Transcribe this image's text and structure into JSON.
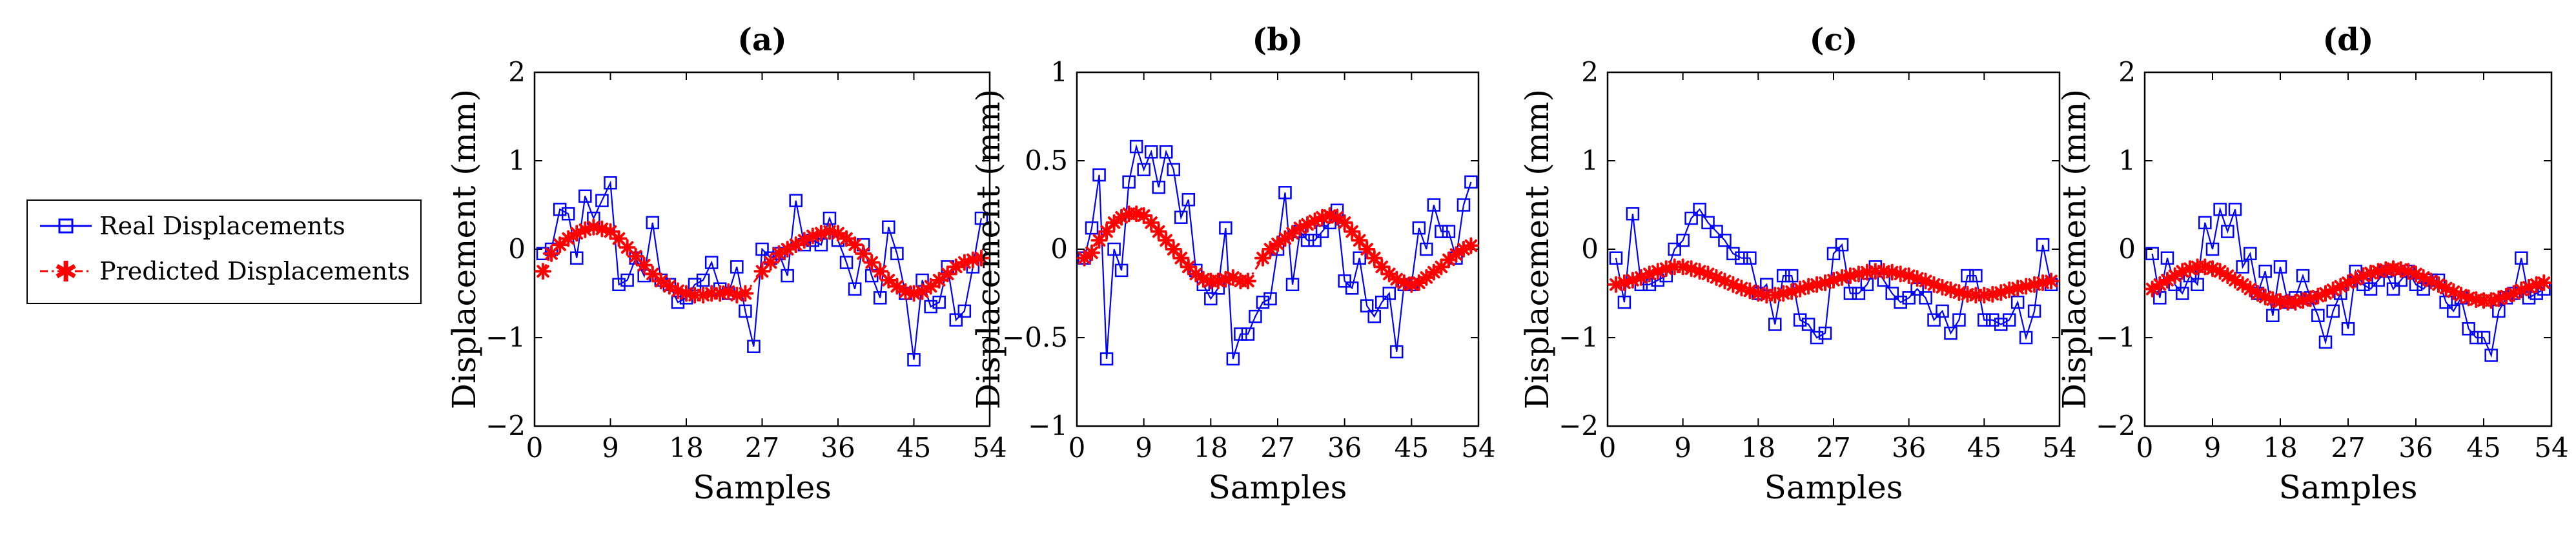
{
  "legend": {
    "real_label": "Real Displacements",
    "predicted_label": "Predicted Displacements",
    "real_color": "#0000ff",
    "predicted_color": "#ff0000"
  },
  "chart_data": [
    {
      "type": "line",
      "title": "(a)",
      "xlabel": "Samples",
      "ylabel": "Displacement (mm)",
      "xlim": [
        0,
        54
      ],
      "ylim": [
        -2,
        2
      ],
      "xticks": [
        0,
        9,
        18,
        27,
        36,
        45,
        54
      ],
      "yticks": [
        -2,
        -1,
        0,
        1,
        2
      ],
      "ytick_labels": [
        "−2",
        "−1",
        "0",
        "1",
        "2"
      ],
      "series": [
        {
          "name": "Real Displacements",
          "marker": "square",
          "color": "#0000ff",
          "x": [
            1,
            2,
            3,
            4,
            5,
            6,
            7,
            8,
            9,
            10,
            11,
            12,
            13,
            14,
            15,
            16,
            17,
            18,
            19,
            20,
            21,
            22,
            23,
            24,
            25,
            26,
            27,
            28,
            29,
            30,
            31,
            32,
            33,
            34,
            35,
            36,
            37,
            38,
            39,
            40,
            41,
            42,
            43,
            44,
            45,
            46,
            47,
            48,
            49,
            50,
            51,
            52,
            53
          ],
          "values": [
            -0.05,
            0.0,
            0.45,
            0.4,
            -0.1,
            0.6,
            0.35,
            0.55,
            0.75,
            -0.4,
            -0.35,
            -0.1,
            -0.3,
            0.3,
            -0.35,
            -0.4,
            -0.6,
            -0.55,
            -0.4,
            -0.35,
            -0.15,
            -0.45,
            -0.5,
            -0.2,
            -0.7,
            -1.1,
            0.0,
            -0.1,
            -0.05,
            -0.3,
            0.55,
            0.05,
            0.1,
            0.05,
            0.35,
            0.1,
            -0.15,
            -0.45,
            0.05,
            -0.3,
            -0.55,
            0.25,
            -0.05,
            -0.5,
            -1.25,
            -0.35,
            -0.65,
            -0.6,
            -0.2,
            -0.8,
            -0.7,
            -0.2,
            0.35
          ]
        },
        {
          "name": "Predicted Displacements",
          "marker": "star",
          "color": "#ff0000",
          "x": [
            1,
            2,
            3,
            4,
            5,
            6,
            7,
            8,
            9,
            10,
            11,
            12,
            13,
            14,
            15,
            16,
            17,
            18,
            19,
            20,
            21,
            22,
            23,
            24,
            25,
            27,
            28,
            29,
            30,
            31,
            32,
            33,
            34,
            35,
            36,
            37,
            38,
            39,
            40,
            41,
            42,
            43,
            44,
            45,
            46,
            47,
            48,
            49,
            50,
            51,
            52,
            53
          ],
          "values": [
            -0.25,
            -0.05,
            0.05,
            0.12,
            0.18,
            0.22,
            0.25,
            0.23,
            0.2,
            0.12,
            0.02,
            -0.08,
            -0.18,
            -0.28,
            -0.36,
            -0.42,
            -0.47,
            -0.5,
            -0.52,
            -0.52,
            -0.5,
            -0.5,
            -0.48,
            -0.52,
            -0.5,
            -0.25,
            -0.15,
            -0.05,
            0.0,
            0.05,
            0.1,
            0.15,
            0.18,
            0.2,
            0.18,
            0.12,
            0.05,
            -0.05,
            -0.15,
            -0.25,
            -0.35,
            -0.42,
            -0.48,
            -0.5,
            -0.48,
            -0.42,
            -0.35,
            -0.28,
            -0.2,
            -0.15,
            -0.12,
            -0.1
          ]
        }
      ]
    },
    {
      "type": "line",
      "title": "(b)",
      "xlabel": "Samples",
      "ylabel": "Displacement (mm)",
      "xlim": [
        0,
        54
      ],
      "ylim": [
        -1,
        1
      ],
      "xticks": [
        0,
        9,
        18,
        27,
        36,
        45,
        54
      ],
      "yticks": [
        -1,
        -0.5,
        0,
        0.5,
        1
      ],
      "ytick_labels": [
        "−1",
        "−0.5",
        "0",
        "0.5",
        "1"
      ],
      "series": [
        {
          "name": "Real Displacements",
          "marker": "square",
          "color": "#0000ff",
          "x": [
            1,
            2,
            3,
            4,
            5,
            6,
            7,
            8,
            9,
            10,
            11,
            12,
            13,
            14,
            15,
            16,
            17,
            18,
            19,
            20,
            21,
            22,
            23,
            24,
            25,
            26,
            27,
            28,
            29,
            30,
            31,
            32,
            33,
            34,
            35,
            36,
            37,
            38,
            39,
            40,
            41,
            42,
            43,
            44,
            45,
            46,
            47,
            48,
            49,
            50,
            51,
            52,
            53
          ],
          "values": [
            -0.05,
            0.12,
            0.42,
            -0.62,
            0.0,
            -0.12,
            0.38,
            0.58,
            0.45,
            0.55,
            0.35,
            0.55,
            0.45,
            0.18,
            0.28,
            -0.12,
            -0.2,
            -0.28,
            -0.22,
            0.12,
            -0.62,
            -0.48,
            -0.48,
            -0.38,
            -0.3,
            -0.28,
            0.0,
            0.32,
            -0.2,
            0.1,
            0.05,
            0.05,
            0.1,
            0.15,
            0.22,
            -0.18,
            -0.22,
            -0.05,
            -0.32,
            -0.38,
            -0.3,
            -0.25,
            -0.58,
            -0.2,
            -0.2,
            0.12,
            0.0,
            0.25,
            0.1,
            0.1,
            -0.05,
            0.25,
            0.38
          ]
        },
        {
          "name": "Predicted Displacements",
          "marker": "star",
          "color": "#ff0000",
          "x": [
            1,
            2,
            3,
            4,
            5,
            6,
            7,
            8,
            9,
            10,
            11,
            12,
            13,
            14,
            15,
            16,
            17,
            18,
            19,
            20,
            21,
            22,
            23,
            25,
            26,
            27,
            28,
            29,
            30,
            31,
            32,
            33,
            34,
            35,
            36,
            37,
            38,
            39,
            40,
            41,
            42,
            43,
            44,
            45,
            46,
            47,
            48,
            49,
            50,
            51,
            52,
            53
          ],
          "values": [
            -0.05,
            -0.02,
            0.05,
            0.1,
            0.15,
            0.18,
            0.2,
            0.2,
            0.19,
            0.15,
            0.1,
            0.05,
            0.0,
            -0.05,
            -0.1,
            -0.14,
            -0.17,
            -0.18,
            -0.18,
            -0.17,
            -0.16,
            -0.18,
            -0.18,
            -0.05,
            0.0,
            0.03,
            0.06,
            0.09,
            0.12,
            0.14,
            0.16,
            0.18,
            0.19,
            0.18,
            0.15,
            0.1,
            0.05,
            0.0,
            -0.05,
            -0.1,
            -0.14,
            -0.17,
            -0.19,
            -0.2,
            -0.19,
            -0.16,
            -0.13,
            -0.1,
            -0.06,
            -0.03,
            0.0,
            0.02
          ]
        }
      ]
    },
    {
      "type": "line",
      "title": "(c)",
      "xlabel": "Samples",
      "ylabel": "Displacement (mm)",
      "xlim": [
        0,
        54
      ],
      "ylim": [
        -2,
        2
      ],
      "xticks": [
        0,
        9,
        18,
        27,
        36,
        45,
        54
      ],
      "yticks": [
        -2,
        -1,
        0,
        1,
        2
      ],
      "ytick_labels": [
        "−2",
        "−1",
        "0",
        "1",
        "2"
      ],
      "series": [
        {
          "name": "Real Displacements",
          "marker": "square",
          "color": "#0000ff",
          "x": [
            1,
            2,
            3,
            4,
            5,
            6,
            7,
            8,
            9,
            10,
            11,
            12,
            13,
            14,
            15,
            16,
            17,
            18,
            19,
            20,
            21,
            22,
            23,
            24,
            25,
            26,
            27,
            28,
            29,
            30,
            31,
            32,
            33,
            34,
            35,
            36,
            37,
            38,
            39,
            40,
            41,
            42,
            43,
            44,
            45,
            46,
            47,
            48,
            49,
            50,
            51,
            52,
            53
          ],
          "values": [
            -0.1,
            -0.6,
            0.4,
            -0.4,
            -0.4,
            -0.35,
            -0.3,
            0.0,
            0.1,
            0.35,
            0.45,
            0.3,
            0.2,
            0.1,
            -0.05,
            -0.1,
            -0.1,
            -0.5,
            -0.4,
            -0.85,
            -0.3,
            -0.3,
            -0.8,
            -0.85,
            -1.0,
            -0.95,
            -0.05,
            0.05,
            -0.5,
            -0.5,
            -0.4,
            -0.2,
            -0.35,
            -0.5,
            -0.6,
            -0.55,
            -0.45,
            -0.55,
            -0.8,
            -0.7,
            -0.95,
            -0.8,
            -0.3,
            -0.3,
            -0.8,
            -0.8,
            -0.85,
            -0.8,
            -0.6,
            -1.0,
            -0.7,
            0.05,
            -0.4
          ]
        },
        {
          "name": "Predicted Displacements",
          "marker": "star",
          "color": "#ff0000",
          "x": [
            1,
            2,
            3,
            4,
            5,
            6,
            7,
            8,
            9,
            10,
            11,
            12,
            13,
            14,
            15,
            16,
            17,
            18,
            19,
            20,
            21,
            22,
            23,
            24,
            25,
            26,
            27,
            28,
            29,
            30,
            31,
            32,
            33,
            34,
            35,
            36,
            37,
            38,
            39,
            40,
            41,
            42,
            43,
            44,
            45,
            46,
            47,
            48,
            49,
            50,
            51,
            52,
            53
          ],
          "values": [
            -0.4,
            -0.38,
            -0.35,
            -0.32,
            -0.28,
            -0.25,
            -0.22,
            -0.2,
            -0.2,
            -0.22,
            -0.25,
            -0.28,
            -0.32,
            -0.36,
            -0.4,
            -0.44,
            -0.47,
            -0.5,
            -0.52,
            -0.52,
            -0.5,
            -0.48,
            -0.45,
            -0.42,
            -0.4,
            -0.38,
            -0.35,
            -0.32,
            -0.3,
            -0.28,
            -0.26,
            -0.25,
            -0.25,
            -0.26,
            -0.28,
            -0.3,
            -0.33,
            -0.36,
            -0.4,
            -0.43,
            -0.46,
            -0.49,
            -0.51,
            -0.52,
            -0.52,
            -0.51,
            -0.49,
            -0.46,
            -0.44,
            -0.42,
            -0.4,
            -0.38,
            -0.36
          ]
        }
      ]
    },
    {
      "type": "line",
      "title": "(d)",
      "xlabel": "Samples",
      "ylabel": "Displacement (mm)",
      "xlim": [
        0,
        54
      ],
      "ylim": [
        -2,
        2
      ],
      "xticks": [
        0,
        9,
        18,
        27,
        36,
        45,
        54
      ],
      "yticks": [
        -2,
        -1,
        0,
        1,
        2
      ],
      "ytick_labels": [
        "−2",
        "−1",
        "0",
        "1",
        "2"
      ],
      "series": [
        {
          "name": "Real Displacements",
          "marker": "square",
          "color": "#0000ff",
          "x": [
            1,
            2,
            3,
            4,
            5,
            6,
            7,
            8,
            9,
            10,
            11,
            12,
            13,
            14,
            15,
            16,
            17,
            18,
            19,
            20,
            21,
            22,
            23,
            24,
            25,
            26,
            27,
            28,
            29,
            30,
            31,
            32,
            33,
            34,
            35,
            36,
            37,
            38,
            39,
            40,
            41,
            42,
            43,
            44,
            45,
            46,
            47,
            48,
            49,
            50,
            51,
            52,
            53
          ],
          "values": [
            -0.05,
            -0.55,
            -0.1,
            -0.4,
            -0.5,
            -0.3,
            -0.4,
            0.3,
            0.0,
            0.45,
            0.2,
            0.45,
            -0.2,
            -0.05,
            -0.5,
            -0.25,
            -0.75,
            -0.2,
            -0.6,
            -0.55,
            -0.3,
            -0.55,
            -0.75,
            -1.05,
            -0.7,
            -0.5,
            -0.9,
            -0.25,
            -0.4,
            -0.45,
            -0.35,
            -0.25,
            -0.45,
            -0.35,
            -0.25,
            -0.4,
            -0.45,
            -0.35,
            -0.35,
            -0.6,
            -0.7,
            -0.55,
            -0.9,
            -1.0,
            -1.0,
            -1.2,
            -0.7,
            -0.55,
            -0.5,
            -0.1,
            -0.55,
            -0.5,
            -0.45
          ]
        },
        {
          "name": "Predicted Displacements",
          "marker": "star",
          "color": "#ff0000",
          "x": [
            1,
            2,
            3,
            4,
            5,
            6,
            7,
            8,
            9,
            10,
            11,
            12,
            13,
            14,
            15,
            16,
            17,
            18,
            19,
            20,
            21,
            22,
            23,
            24,
            25,
            26,
            27,
            28,
            29,
            30,
            31,
            32,
            33,
            34,
            35,
            36,
            37,
            38,
            39,
            40,
            41,
            42,
            43,
            44,
            45,
            46,
            47,
            48,
            49,
            50,
            51,
            52,
            53
          ],
          "values": [
            -0.45,
            -0.4,
            -0.35,
            -0.3,
            -0.25,
            -0.22,
            -0.2,
            -0.2,
            -0.22,
            -0.25,
            -0.3,
            -0.35,
            -0.4,
            -0.45,
            -0.5,
            -0.54,
            -0.57,
            -0.59,
            -0.6,
            -0.6,
            -0.58,
            -0.56,
            -0.53,
            -0.5,
            -0.46,
            -0.42,
            -0.38,
            -0.34,
            -0.3,
            -0.27,
            -0.25,
            -0.23,
            -0.22,
            -0.23,
            -0.25,
            -0.28,
            -0.32,
            -0.36,
            -0.4,
            -0.44,
            -0.48,
            -0.52,
            -0.55,
            -0.57,
            -0.58,
            -0.58,
            -0.56,
            -0.53,
            -0.5,
            -0.46,
            -0.43,
            -0.4,
            -0.38
          ]
        }
      ]
    }
  ]
}
